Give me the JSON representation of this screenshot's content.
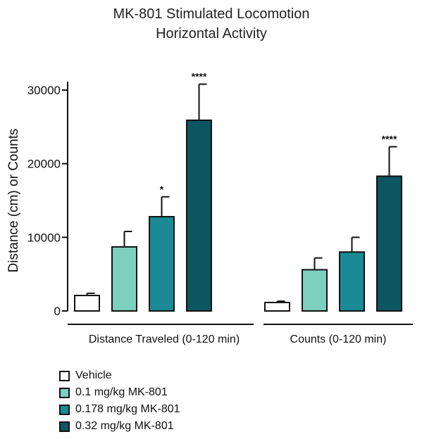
{
  "chart_data": {
    "type": "bar",
    "title": [
      "MK-801 Stimulated Locomotion",
      "Horizontal Activity"
    ],
    "ylabel": "Distance (cm) or Counts",
    "xlabel": "",
    "ylim": [
      0,
      30000
    ],
    "yticks": [
      0,
      10000,
      20000,
      30000
    ],
    "categories": [
      "Distance Traveled (0-120 min)",
      "Counts (0-120 min)"
    ],
    "series": [
      {
        "name": "Vehicle",
        "color": "#ffffff",
        "values": [
          2100,
          1150
        ],
        "errors": [
          300,
          180
        ],
        "significance": [
          "",
          ""
        ]
      },
      {
        "name": "0.1 mg/kg MK-801",
        "color": "#7dcfbf",
        "values": [
          8700,
          5600
        ],
        "errors": [
          2100,
          1600
        ],
        "significance": [
          "",
          ""
        ]
      },
      {
        "name": "0.178 mg/kg MK-801",
        "color": "#1a8a94",
        "values": [
          12800,
          8000
        ],
        "errors": [
          2700,
          2000
        ],
        "significance": [
          "*",
          ""
        ]
      },
      {
        "name": "0.32 mg/kg MK-801",
        "color": "#0e5562",
        "values": [
          25900,
          18300
        ],
        "errors": [
          4900,
          4000
        ],
        "significance": [
          "****",
          "****"
        ]
      }
    ],
    "grid": false,
    "legend": "bottom-left"
  }
}
